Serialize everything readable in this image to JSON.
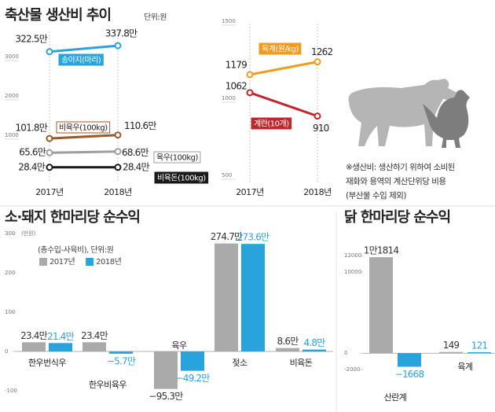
{
  "chart_data": [
    {
      "type": "line",
      "title": "축산물 생산비 추이",
      "subtitle": "단위:원",
      "categories": [
        "2017년",
        "2018년"
      ],
      "ylim": [
        0,
        3600
      ],
      "yticks": [
        1000,
        2000,
        3000
      ],
      "series": [
        {
          "name": "송아지(마리)",
          "color": "#29a3dc",
          "values": [
            3225,
            3378
          ],
          "value_labels": [
            "322.5만",
            "337.8만"
          ]
        },
        {
          "name": "비육우(100kg)",
          "color": "#9b5a26",
          "values": [
            1018,
            1106
          ],
          "value_labels": [
            "101.8만",
            "110.6만"
          ]
        },
        {
          "name": "육우(100kg)",
          "color": "#9e9e9e",
          "values": [
            656,
            686
          ],
          "value_labels": [
            "65.6만",
            "68.6만"
          ]
        },
        {
          "name": "비육돈(100kg)",
          "color": "#1a1a1a",
          "values": [
            284,
            284
          ],
          "value_labels": [
            "28.4만",
            "28.4만"
          ]
        }
      ]
    },
    {
      "type": "line",
      "categories": [
        "2017년",
        "2018년"
      ],
      "ylim": [
        500,
        1500
      ],
      "yticks": [
        500,
        1000,
        1500
      ],
      "series": [
        {
          "name": "육계(원/kg)",
          "color": "#f39a1e",
          "values": [
            1179,
            1262
          ]
        },
        {
          "name": "계란(10개)",
          "color": "#c0272d",
          "values": [
            1062,
            910
          ]
        }
      ]
    },
    {
      "type": "bar",
      "title": "소·돼지 한마리당 순수익",
      "subtitle": "(총수입-사육비), 단위:원",
      "y_label": "(만원)",
      "categories": [
        "한우번식우",
        "한우비육우",
        "육우",
        "젖소",
        "비육돈"
      ],
      "ylim": [
        -110,
        300
      ],
      "yticks": [
        -100,
        0,
        100,
        200,
        300
      ],
      "series": [
        {
          "name": "2017년",
          "color": "#aaaaaa",
          "values": [
            23.4,
            23.4,
            -95.3,
            274.7,
            8.6
          ],
          "value_labels": [
            "23.4만",
            "23.4만",
            "−95.3만",
            "274.7만",
            "8.6만"
          ]
        },
        {
          "name": "2018년",
          "color": "#29a3dc",
          "values": [
            21.4,
            -5.7,
            -49.2,
            273.6,
            4.8
          ],
          "value_labels": [
            "21.4만",
            "−5.7만",
            "−49.2만",
            "273.6만",
            "4.8만"
          ]
        }
      ]
    },
    {
      "type": "bar",
      "title": "닭 한마리당 순수익",
      "categories": [
        "산란계",
        "육계"
      ],
      "ylim": [
        -2300,
        12500
      ],
      "yticks": [
        -2000,
        0,
        10000,
        12000
      ],
      "series": [
        {
          "color": "#aaaaaa",
          "values": [
            11814,
            149
          ],
          "value_labels": [
            "1만1814",
            "149"
          ]
        },
        {
          "color": "#29a3dc",
          "values": [
            -1668,
            121
          ],
          "value_labels": [
            "−1668",
            "121"
          ]
        }
      ]
    }
  ],
  "note": [
    "※생산비: 생산하기 위하여 소비된",
    "재화와 용역의 계산단위당 비용",
    "(부산물 수입 제외)"
  ]
}
